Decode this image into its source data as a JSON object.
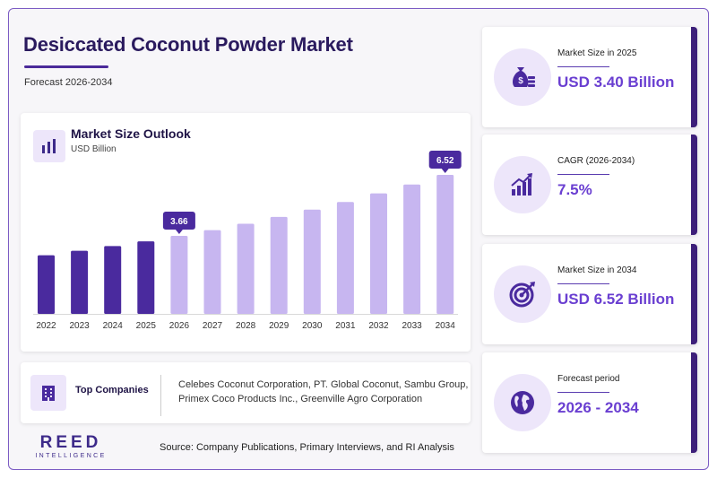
{
  "header": {
    "title": "Desiccated Coconut Powder Market",
    "forecast": "Forecast 2026-2034"
  },
  "chart_card": {
    "title": "Market Size Outlook",
    "unit": "USD Billion"
  },
  "chart_data": {
    "type": "bar",
    "title": "Market Size Outlook",
    "ylabel": "USD Billion",
    "categories": [
      "2022",
      "2023",
      "2024",
      "2025",
      "2026",
      "2027",
      "2028",
      "2029",
      "2030",
      "2031",
      "2032",
      "2033",
      "2034"
    ],
    "values": [
      2.75,
      2.96,
      3.18,
      3.4,
      3.66,
      3.93,
      4.23,
      4.55,
      4.89,
      5.25,
      5.65,
      6.07,
      6.52
    ],
    "historical_until": "2025",
    "data_labels": [
      {
        "category": "2026",
        "text": "3.66"
      },
      {
        "category": "2034",
        "text": "6.52"
      }
    ],
    "colors": {
      "historical": "#4a2a9e",
      "forecast": "#c7b6f0",
      "label_bg": "#4a2a9e"
    },
    "ylim": [
      0,
      6.52
    ]
  },
  "companies": {
    "label": "Top Companies",
    "list": "Celebes Coconut Corporation, PT. Global Coconut, Sambu Group, Primex Coco Products Inc., Greenville Agro Corporation"
  },
  "brand": {
    "main": "REED",
    "sub": "INTELLIGENCE"
  },
  "source": "Source: Company Publications, Primary Interviews, and RI Analysis",
  "stats": [
    {
      "label": "Market Size in 2025",
      "value": "USD 3.40 Billion",
      "icon": "money-bag-icon"
    },
    {
      "label": "CAGR (2026-2034)",
      "value": "7.5%",
      "icon": "growth-chart-icon"
    },
    {
      "label": "Market Size in 2034",
      "value": "USD 6.52 Billion",
      "icon": "target-icon"
    },
    {
      "label": "Forecast period",
      "value": "2026 - 2034",
      "icon": "globe-icon"
    }
  ],
  "colors": {
    "accent": "#6a3fd1",
    "dark": "#2a1a5e",
    "icon_bg": "#ede6fa"
  }
}
